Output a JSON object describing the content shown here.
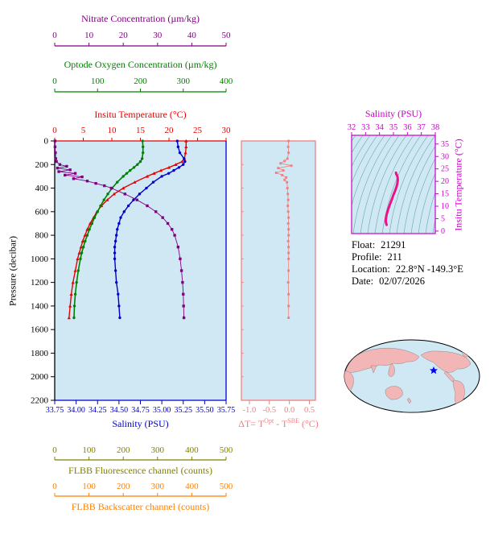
{
  "colors": {
    "plot_bg": "#cfe8f4",
    "pressure": "#000000",
    "nitrate": "#800080",
    "oxygen": "#008000",
    "temperature": "#e80000",
    "salinity": "#0000cd",
    "fluorescence": "#808000",
    "backscatter": "#ff8000",
    "delta_t": "#f08080",
    "ts_axis": "#cc00cc",
    "ts_curve": "#ee1289",
    "contour": "#63a8a8",
    "map_land": "#f2b6b6",
    "map_ocean": "#cfe8f4",
    "star": "#0000ee"
  },
  "info": {
    "lines": [
      {
        "label": "Float:",
        "value": "21291"
      },
      {
        "label": "Profile:",
        "value": "211"
      },
      {
        "label": "Location:",
        "value": "22.8°N -149.3°E"
      },
      {
        "label": "Date:",
        "value": "02/07/2026"
      }
    ]
  },
  "chart_data": [
    {
      "type": "line",
      "title": "Float vertical profiles",
      "y_axis": {
        "label": "Pressure (decibar)",
        "range": [
          0,
          2200
        ],
        "tick_values": [
          0,
          200,
          400,
          600,
          800,
          1000,
          1200,
          1400,
          1600,
          1800,
          2000,
          2200
        ],
        "tick_labels": [
          "0",
          "200",
          "400",
          "600",
          "800",
          "1000",
          "1200",
          "1400",
          "1600",
          "1800",
          "2000",
          "2200"
        ]
      },
      "x_axes": [
        {
          "id": "nitrate",
          "label": "Nitrate Concentration (µm/kg)",
          "color": "#800080",
          "range": [
            0,
            50
          ],
          "tick_values": [
            0,
            10,
            20,
            30,
            40,
            50
          ],
          "tick_labels": [
            "0",
            "10",
            "20",
            "30",
            "40",
            "50"
          ]
        },
        {
          "id": "oxygen",
          "label": "Optode Oxygen Concentration (µm/kg)",
          "color": "#008000",
          "range": [
            0,
            400
          ],
          "tick_values": [
            0,
            100,
            200,
            300,
            400
          ],
          "tick_labels": [
            "0",
            "100",
            "200",
            "300",
            "400"
          ]
        },
        {
          "id": "temperature",
          "label": "Insitu Temperature (°C)",
          "color": "#e80000",
          "range": [
            0,
            30
          ],
          "tick_values": [
            0,
            5,
            10,
            15,
            20,
            25,
            30
          ],
          "tick_labels": [
            "0",
            "5",
            "10",
            "15",
            "20",
            "25",
            "30"
          ]
        },
        {
          "id": "salinity",
          "label": "Salinity (PSU)",
          "color": "#0000cd",
          "range": [
            33.75,
            35.75
          ],
          "tick_values": [
            33.75,
            34.0,
            34.25,
            34.5,
            34.75,
            35.0,
            35.25,
            35.5,
            35.75
          ],
          "tick_labels": [
            "33.75",
            "34.00",
            "34.25",
            "34.50",
            "34.75",
            "35.00",
            "35.25",
            "35.50",
            "35.75"
          ]
        },
        {
          "id": "fluorescence",
          "label": "FLBB Fluorescence channel (counts)",
          "color": "#808000",
          "range": [
            0,
            500
          ],
          "tick_values": [
            0,
            100,
            200,
            300,
            400,
            500
          ],
          "tick_labels": [
            "0",
            "100",
            "200",
            "300",
            "400",
            "500"
          ]
        },
        {
          "id": "backscatter",
          "label": "FLBB Backscatter channel (counts)",
          "color": "#ff8000",
          "range": [
            0,
            500
          ],
          "tick_values": [
            0,
            100,
            200,
            300,
            400,
            500
          ],
          "tick_labels": [
            "0",
            "100",
            "200",
            "300",
            "400",
            "500"
          ]
        }
      ],
      "series": [
        {
          "name": "insitu-temperature",
          "axis": "temperature",
          "color": "#e80000",
          "marker": "triangle",
          "line_width": 1.4,
          "pressure": [
            0,
            50,
            100,
            150,
            175,
            200,
            225,
            250,
            275,
            300,
            350,
            400,
            450,
            500,
            550,
            600,
            650,
            700,
            750,
            800,
            850,
            900,
            950,
            1000,
            1100,
            1200,
            1300,
            1400,
            1500
          ],
          "values": [
            23.0,
            23.0,
            22.9,
            22.7,
            22.3,
            21.2,
            20.0,
            18.6,
            17.4,
            16.2,
            14.0,
            12.0,
            10.4,
            9.2,
            8.2,
            7.4,
            6.8,
            6.2,
            5.7,
            5.3,
            4.9,
            4.6,
            4.3,
            4.0,
            3.6,
            3.2,
            2.9,
            2.7,
            2.5
          ]
        },
        {
          "name": "optode-oxygen",
          "axis": "oxygen",
          "color": "#008000",
          "marker": "circle",
          "line_width": 1.6,
          "pressure": [
            0,
            50,
            100,
            150,
            175,
            200,
            225,
            250,
            275,
            300,
            350,
            400,
            450,
            500,
            550,
            600,
            650,
            700,
            750,
            800,
            850,
            900,
            950,
            1000,
            1100,
            1200,
            1300,
            1400,
            1500
          ],
          "values": [
            205,
            206,
            206,
            204,
            200,
            193,
            185,
            176,
            168,
            160,
            146,
            134,
            124,
            115,
            107,
            100,
            93,
            87,
            81,
            76,
            71,
            67,
            63,
            60,
            55,
            51,
            48,
            46,
            45
          ]
        },
        {
          "name": "salinity",
          "axis": "salinity",
          "color": "#0000cd",
          "marker": "circle",
          "line_width": 1.4,
          "pressure": [
            0,
            50,
            100,
            150,
            175,
            200,
            225,
            250,
            275,
            300,
            350,
            400,
            450,
            500,
            550,
            600,
            650,
            700,
            750,
            800,
            850,
            900,
            950,
            1000,
            1100,
            1200,
            1300,
            1400,
            1500
          ],
          "values": [
            35.18,
            35.19,
            35.21,
            35.26,
            35.27,
            35.25,
            35.2,
            35.14,
            35.08,
            35.0,
            34.9,
            34.82,
            34.74,
            34.67,
            34.61,
            34.56,
            34.52,
            34.5,
            34.48,
            34.47,
            34.46,
            34.45,
            34.45,
            34.45,
            34.46,
            34.47,
            34.49,
            34.5,
            34.51
          ]
        },
        {
          "name": "nitrate",
          "axis": "nitrate",
          "color": "#800080",
          "marker": "square",
          "line_width": 0.9,
          "pressure": [
            0,
            50,
            100,
            150,
            175,
            200,
            215,
            230,
            245,
            260,
            275,
            290,
            305,
            320,
            340,
            360,
            380,
            400,
            450,
            500,
            550,
            600,
            650,
            700,
            750,
            800,
            900,
            1000,
            1100,
            1200,
            1300,
            1400,
            1500
          ],
          "values": [
            0.1,
            0.1,
            0.2,
            0.3,
            0.5,
            1.5,
            3.5,
            0.8,
            4.5,
            1.2,
            6.0,
            3.0,
            8.0,
            5.5,
            9.5,
            12.0,
            14.5,
            16.5,
            20.5,
            24.0,
            27.0,
            29.5,
            31.5,
            33.0,
            34.2,
            35.0,
            36.0,
            36.6,
            37.0,
            37.3,
            37.5,
            37.6,
            37.7
          ]
        }
      ]
    },
    {
      "type": "scatter",
      "title": "Optode minus SBE temperature difference",
      "x_axis": {
        "label_parts": {
          "p1": "ΔT= T",
          "s1": "Opt",
          "p2": " - T",
          "s2": "SBE",
          "p3": " (°C)"
        },
        "color": "#f08080",
        "range": [
          -1.2,
          0.65
        ],
        "tick_values": [
          -1.0,
          -0.5,
          0.0,
          0.5
        ],
        "tick_labels": [
          "-1.0",
          "-0.5",
          "0.0",
          "0.5"
        ]
      },
      "y_axis": {
        "label": "",
        "range": [
          0,
          2200
        ]
      },
      "series": [
        {
          "name": "delta-temperature",
          "color": "#f08080",
          "marker": "square",
          "pressure": [
            0,
            50,
            100,
            150,
            170,
            190,
            210,
            230,
            250,
            270,
            290,
            310,
            330,
            350,
            400,
            450,
            500,
            550,
            600,
            650,
            700,
            750,
            800,
            850,
            900,
            950,
            1000,
            1100,
            1200,
            1300,
            1400,
            1500
          ],
          "values": [
            -0.02,
            -0.03,
            -0.02,
            -0.05,
            -0.12,
            -0.22,
            0.05,
            -0.28,
            -0.15,
            -0.33,
            -0.18,
            -0.08,
            -0.12,
            -0.06,
            -0.05,
            -0.04,
            -0.03,
            -0.04,
            -0.03,
            -0.02,
            -0.03,
            -0.02,
            -0.02,
            -0.03,
            -0.02,
            -0.02,
            -0.02,
            -0.02,
            -0.03,
            -0.02,
            -0.02,
            -0.02
          ]
        }
      ]
    },
    {
      "type": "line",
      "title": "Temperature-Salinity diagram",
      "x_axis": {
        "label": "Salinity (PSU)",
        "color": "#cc00cc",
        "range": [
          32,
          38
        ],
        "tick_values": [
          32,
          33,
          34,
          35,
          36,
          37,
          38
        ],
        "tick_labels": [
          "32",
          "33",
          "34",
          "35",
          "36",
          "37",
          "38"
        ]
      },
      "y_axis": {
        "label": "Insitu Temperature (°C)",
        "color": "#cc00cc",
        "range": [
          -1,
          38.5
        ],
        "tick_values": [
          0,
          5,
          10,
          15,
          20,
          25,
          30,
          35
        ],
        "tick_labels": [
          "0",
          "5",
          "10",
          "15",
          "20",
          "25",
          "30",
          "35"
        ]
      },
      "contours": "isopycnals",
      "series": [
        {
          "name": "ts-profile",
          "color": "#ee1289",
          "salinity": [
            35.18,
            35.21,
            35.26,
            35.3,
            35.31,
            35.28,
            35.22,
            35.12,
            35.0,
            34.9,
            34.8,
            34.7,
            34.62,
            34.56,
            34.51,
            34.48,
            34.46,
            34.45,
            34.46,
            34.48,
            34.5,
            34.51
          ],
          "temperature": [
            23.5,
            22.8,
            22.4,
            21.5,
            20.5,
            19.2,
            17.8,
            16.2,
            14.6,
            13.0,
            11.5,
            10.0,
            8.7,
            7.6,
            6.6,
            5.7,
            4.9,
            4.2,
            3.6,
            3.1,
            2.7,
            2.5
          ]
        }
      ]
    }
  ]
}
